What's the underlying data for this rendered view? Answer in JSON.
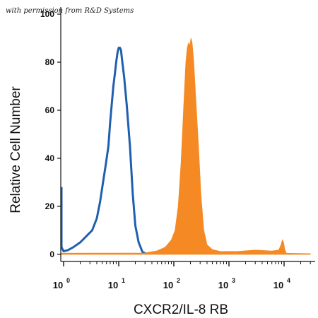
{
  "credit_text": "with permission from R&D Systems",
  "chart_data": {
    "type": "area",
    "xlabel": "CXCR2/IL-8 RB",
    "ylabel": "Relative Cell Number",
    "xscale": "log",
    "xlim": [
      0.8,
      30000
    ],
    "ylim": [
      0,
      100
    ],
    "yticks": [
      0,
      20,
      40,
      60,
      80,
      100
    ],
    "xticks": [
      {
        "value": 1,
        "base": "10",
        "exp": "0"
      },
      {
        "value": 10,
        "base": "10",
        "exp": "1"
      },
      {
        "value": 100,
        "base": "10",
        "exp": "2"
      },
      {
        "value": 1000,
        "base": "10",
        "exp": "3"
      },
      {
        "value": 10000,
        "base": "10",
        "exp": "4"
      }
    ],
    "grid": false,
    "legend": "none",
    "series": [
      {
        "style": "outline",
        "color": "#1f5fb0",
        "points": [
          [
            0.8,
            28
          ],
          [
            0.82,
            22
          ],
          [
            0.85,
            10
          ],
          [
            0.9,
            3
          ],
          [
            1.0,
            1.3
          ],
          [
            1.2,
            1.8
          ],
          [
            1.5,
            3
          ],
          [
            2.0,
            5
          ],
          [
            2.7,
            8
          ],
          [
            3.3,
            10
          ],
          [
            4.0,
            15
          ],
          [
            4.6,
            22
          ],
          [
            5.2,
            30
          ],
          [
            5.8,
            37
          ],
          [
            6.5,
            45
          ],
          [
            7.0,
            55
          ],
          [
            7.5,
            63
          ],
          [
            8.0,
            70
          ],
          [
            8.5,
            75
          ],
          [
            9.0,
            80
          ],
          [
            9.5,
            84
          ],
          [
            10.0,
            86
          ],
          [
            10.5,
            86
          ],
          [
            11.0,
            85
          ],
          [
            11.5,
            81
          ],
          [
            12.5,
            74
          ],
          [
            14.0,
            62
          ],
          [
            16.0,
            45
          ],
          [
            18.0,
            25
          ],
          [
            20.0,
            12
          ],
          [
            23.0,
            5
          ],
          [
            27.0,
            1
          ],
          [
            32.0,
            0.2
          ]
        ]
      },
      {
        "style": "filled",
        "color": "#f58a25",
        "points": [
          [
            0.8,
            0.5
          ],
          [
            30,
            0.6
          ],
          [
            50,
            1.5
          ],
          [
            70,
            3
          ],
          [
            90,
            6
          ],
          [
            105,
            10
          ],
          [
            120,
            20
          ],
          [
            135,
            38
          ],
          [
            150,
            60
          ],
          [
            165,
            80
          ],
          [
            175,
            86
          ],
          [
            185,
            88
          ],
          [
            195,
            87
          ],
          [
            205,
            90
          ],
          [
            215,
            88
          ],
          [
            230,
            80
          ],
          [
            250,
            65
          ],
          [
            280,
            45
          ],
          [
            310,
            25
          ],
          [
            350,
            10
          ],
          [
            400,
            4
          ],
          [
            500,
            2
          ],
          [
            700,
            1.2
          ],
          [
            1500,
            1.3
          ],
          [
            3000,
            1.8
          ],
          [
            6000,
            1.4
          ],
          [
            8000,
            1.8
          ],
          [
            8800,
            4
          ],
          [
            9300,
            6
          ],
          [
            9800,
            5
          ],
          [
            10300,
            2
          ],
          [
            11000,
            0.5
          ],
          [
            30000,
            0.3
          ]
        ]
      }
    ]
  }
}
